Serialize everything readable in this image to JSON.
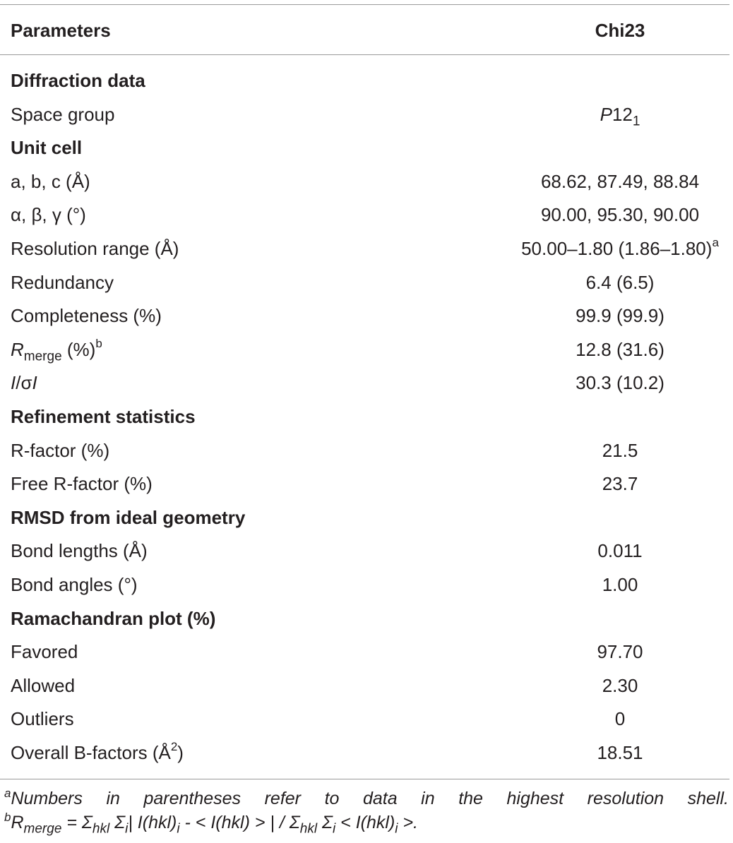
{
  "table": {
    "header": {
      "parameters": "Parameters",
      "value": "Chi23"
    },
    "rows": [
      {
        "label": "Diffraction data",
        "value": "",
        "bold": true
      },
      {
        "label": "Space group",
        "value_html": "<i>P</i>12<sub>1</sub>",
        "value": "P121"
      },
      {
        "label": "Unit cell",
        "value": "",
        "bold": true
      },
      {
        "label": "a, b, c (Å)",
        "value": "68.62, 87.49, 88.84"
      },
      {
        "label": "α, β, γ (°)",
        "value": "90.00, 95.30, 90.00"
      },
      {
        "label": "Resolution range (Å)",
        "value": "50.00–1.80 (1.86–1.80)",
        "value_sup": "a"
      },
      {
        "label": "Redundancy",
        "value": "6.4 (6.5)"
      },
      {
        "label": "Completeness (%)",
        "value": "99.9 (99.9)"
      },
      {
        "label_html": "<i>R</i><sub>merge</sub> (%)<sup>b</sup>",
        "label": "Rmerge (%)b",
        "value": "12.8 (31.6)"
      },
      {
        "label_html": "<i>I</i>/σ<i>I</i>",
        "label": "I/σI",
        "value": "30.3 (10.2)"
      },
      {
        "label": "Refinement statistics",
        "value": "",
        "bold": true
      },
      {
        "label": "R-factor (%)",
        "value": "21.5"
      },
      {
        "label": "Free R-factor (%)",
        "value": "23.7"
      },
      {
        "label": "RMSD from ideal geometry",
        "value": "",
        "bold": true
      },
      {
        "label": "Bond lengths (Å)",
        "value": "0.011"
      },
      {
        "label": "Bond angles (°)",
        "value": "1.00"
      },
      {
        "label": "Ramachandran plot (%)",
        "value": "",
        "bold": true
      },
      {
        "label": "Favored",
        "value": "97.70"
      },
      {
        "label": "Allowed",
        "value": "2.30"
      },
      {
        "label": "Outliers",
        "value": "0"
      },
      {
        "label_html": "Overall B-factors (Å<sup>2</sup>)",
        "label": "Overall B-factors (Å2)",
        "value": "18.51"
      }
    ]
  },
  "footnotes": {
    "a_mark": "a",
    "a_text": "Numbers in parentheses refer to data in the highest resolution shell.",
    "b_mark": "b",
    "b_html": "<i>R</i><sub><i>merge</i></sub> = Σ<sub><i>hkl</i></sub> Σ<sub><i>i</i></sub>| <i>I(hkl)</i><sub><i>i</i></sub> - &lt; <i>I(hkl)</i> &gt; | / Σ<sub><i>hkl</i></sub> Σ<sub><i>i</i></sub> &lt; <i>I(hkl)</i><sub><i>i</i></sub> &gt;.",
    "b_text": "Rmerge = Σhkl Σi| I(hkl)i - < I(hkl) > | / Σhkl Σi < I(hkl)i >."
  }
}
